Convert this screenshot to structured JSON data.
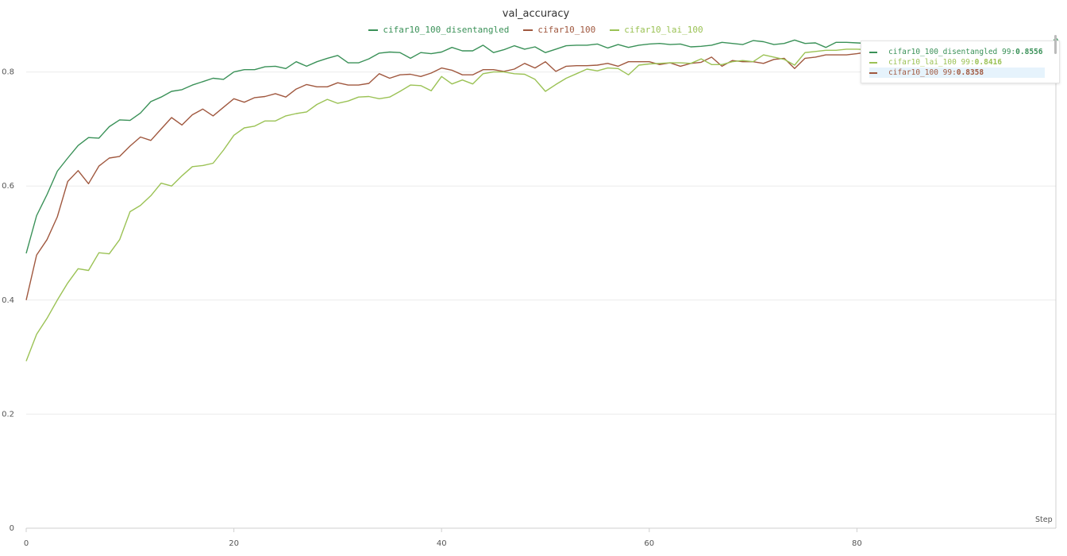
{
  "chart_data": {
    "type": "line",
    "title": "val_accuracy",
    "xlabel": "Step",
    "ylabel": "",
    "xlim": [
      0,
      99
    ],
    "ylim": [
      0,
      0.86
    ],
    "xticks": [
      0,
      20,
      40,
      60,
      80
    ],
    "yticks": [
      0,
      0.2,
      0.4,
      0.6,
      0.8
    ],
    "xtick_labels": [
      "0",
      "20",
      "40",
      "60",
      "80"
    ],
    "ytick_labels": [
      "0",
      "0.2",
      "0.4",
      "0.6",
      "0.8"
    ],
    "grid": true,
    "legend_position": "top-center",
    "series": [
      {
        "name": "cifar10_100_disentangled",
        "color": "#3a9158",
        "x": [
          0,
          1,
          2,
          3,
          4,
          5,
          6,
          7,
          8,
          9,
          10,
          11,
          12,
          13,
          14,
          15,
          16,
          17,
          18,
          19,
          20,
          21,
          22,
          23,
          24,
          25,
          26,
          27,
          28,
          29,
          30,
          31,
          32,
          33,
          34,
          35,
          36,
          37,
          38,
          39,
          40,
          41,
          42,
          43,
          44,
          45,
          46,
          47,
          48,
          49,
          50,
          51,
          52,
          53,
          54,
          55,
          56,
          57,
          58,
          59,
          60,
          61,
          62,
          63,
          64,
          65,
          66,
          67,
          68,
          69,
          70,
          71,
          72,
          73,
          74,
          75,
          76,
          77,
          78,
          79,
          80,
          81
        ],
        "values": [
          0.482,
          0.548,
          0.585,
          0.626,
          0.649,
          0.671,
          0.685,
          0.684,
          0.704,
          0.716,
          0.715,
          0.728,
          0.748,
          0.756,
          0.766,
          0.769,
          0.777,
          0.783,
          0.789,
          0.787,
          0.8,
          0.804,
          0.804,
          0.809,
          0.81,
          0.806,
          0.818,
          0.81,
          0.818,
          0.824,
          0.829,
          0.816,
          0.816,
          0.823,
          0.833,
          0.835,
          0.834,
          0.824,
          0.834,
          0.832,
          0.835,
          0.843,
          0.837,
          0.837,
          0.847,
          0.834,
          0.839,
          0.846,
          0.84,
          0.844,
          0.834,
          0.84,
          0.846,
          0.847,
          0.847,
          0.849,
          0.842,
          0.848,
          0.843,
          0.847,
          0.849,
          0.85,
          0.848,
          0.849,
          0.844,
          0.845,
          0.847,
          0.852,
          0.85,
          0.848,
          0.855,
          0.853,
          0.848,
          0.85,
          0.856,
          0.85,
          0.851,
          0.843,
          0.852,
          0.852,
          0.851,
          0.85
        ]
      },
      {
        "name": "cifar10_100",
        "color": "#a0583f",
        "x": [
          0,
          1,
          2,
          3,
          4,
          5,
          6,
          7,
          8,
          9,
          10,
          11,
          12,
          13,
          14,
          15,
          16,
          17,
          18,
          19,
          20,
          21,
          22,
          23,
          24,
          25,
          26,
          27,
          28,
          29,
          30,
          31,
          32,
          33,
          34,
          35,
          36,
          37,
          38,
          39,
          40,
          41,
          42,
          43,
          44,
          45,
          46,
          47,
          48,
          49,
          50,
          51,
          52,
          53,
          54,
          55,
          56,
          57,
          58,
          59,
          60,
          61,
          62,
          63,
          64,
          65,
          66,
          67,
          68,
          69,
          70,
          71,
          72,
          73,
          74,
          75,
          76,
          77,
          78,
          79,
          80,
          81
        ],
        "values": [
          0.4,
          0.479,
          0.506,
          0.546,
          0.608,
          0.627,
          0.604,
          0.635,
          0.649,
          0.652,
          0.67,
          0.686,
          0.68,
          0.7,
          0.72,
          0.707,
          0.725,
          0.735,
          0.723,
          0.738,
          0.753,
          0.747,
          0.755,
          0.757,
          0.762,
          0.756,
          0.77,
          0.778,
          0.774,
          0.774,
          0.781,
          0.777,
          0.777,
          0.78,
          0.797,
          0.789,
          0.795,
          0.796,
          0.792,
          0.798,
          0.807,
          0.803,
          0.795,
          0.795,
          0.804,
          0.804,
          0.801,
          0.805,
          0.815,
          0.807,
          0.818,
          0.801,
          0.81,
          0.811,
          0.811,
          0.812,
          0.815,
          0.81,
          0.818,
          0.818,
          0.818,
          0.813,
          0.816,
          0.81,
          0.815,
          0.817,
          0.826,
          0.81,
          0.82,
          0.818,
          0.818,
          0.815,
          0.822,
          0.824,
          0.806,
          0.824,
          0.826,
          0.83,
          0.83,
          0.83,
          0.832,
          0.835
        ]
      },
      {
        "name": "cifar10_lai_100",
        "color": "#9bc255",
        "x": [
          0,
          1,
          2,
          3,
          4,
          5,
          6,
          7,
          8,
          9,
          10,
          11,
          12,
          13,
          14,
          15,
          16,
          17,
          18,
          19,
          20,
          21,
          22,
          23,
          24,
          25,
          26,
          27,
          28,
          29,
          30,
          31,
          32,
          33,
          34,
          35,
          36,
          37,
          38,
          39,
          40,
          41,
          42,
          43,
          44,
          45,
          46,
          47,
          48,
          49,
          50,
          51,
          52,
          53,
          54,
          55,
          56,
          57,
          58,
          59,
          60,
          61,
          62,
          63,
          64,
          65,
          66,
          67,
          68,
          69,
          70,
          71,
          72,
          73,
          74,
          75,
          76,
          77,
          78,
          79,
          80,
          81
        ],
        "values": [
          0.293,
          0.34,
          0.368,
          0.4,
          0.43,
          0.455,
          0.452,
          0.483,
          0.481,
          0.506,
          0.555,
          0.566,
          0.583,
          0.605,
          0.6,
          0.618,
          0.634,
          0.636,
          0.64,
          0.663,
          0.689,
          0.702,
          0.705,
          0.714,
          0.714,
          0.723,
          0.727,
          0.73,
          0.743,
          0.752,
          0.745,
          0.749,
          0.756,
          0.757,
          0.753,
          0.756,
          0.766,
          0.777,
          0.776,
          0.767,
          0.792,
          0.779,
          0.786,
          0.779,
          0.797,
          0.8,
          0.8,
          0.797,
          0.796,
          0.787,
          0.766,
          0.778,
          0.789,
          0.797,
          0.805,
          0.802,
          0.807,
          0.806,
          0.795,
          0.812,
          0.814,
          0.815,
          0.816,
          0.816,
          0.815,
          0.823,
          0.813,
          0.813,
          0.818,
          0.82,
          0.818,
          0.83,
          0.826,
          0.822,
          0.812,
          0.834,
          0.836,
          0.838,
          0.838,
          0.84,
          0.84,
          0.839
        ]
      }
    ]
  },
  "tooltip": {
    "rows": [
      {
        "label": "cifar10_100_disentangled 99: ",
        "value": "0.8556",
        "color": "#3a9158"
      },
      {
        "label": "cifar10_lai_100 99: ",
        "value": "0.8416",
        "color": "#9bc255"
      },
      {
        "label": "cifar10_100 99: ",
        "value": "0.8358",
        "color": "#a0583f"
      }
    ]
  },
  "colors": {
    "grid": "#ececec",
    "axis": "#cfcfcf",
    "tick_text": "#555555"
  }
}
